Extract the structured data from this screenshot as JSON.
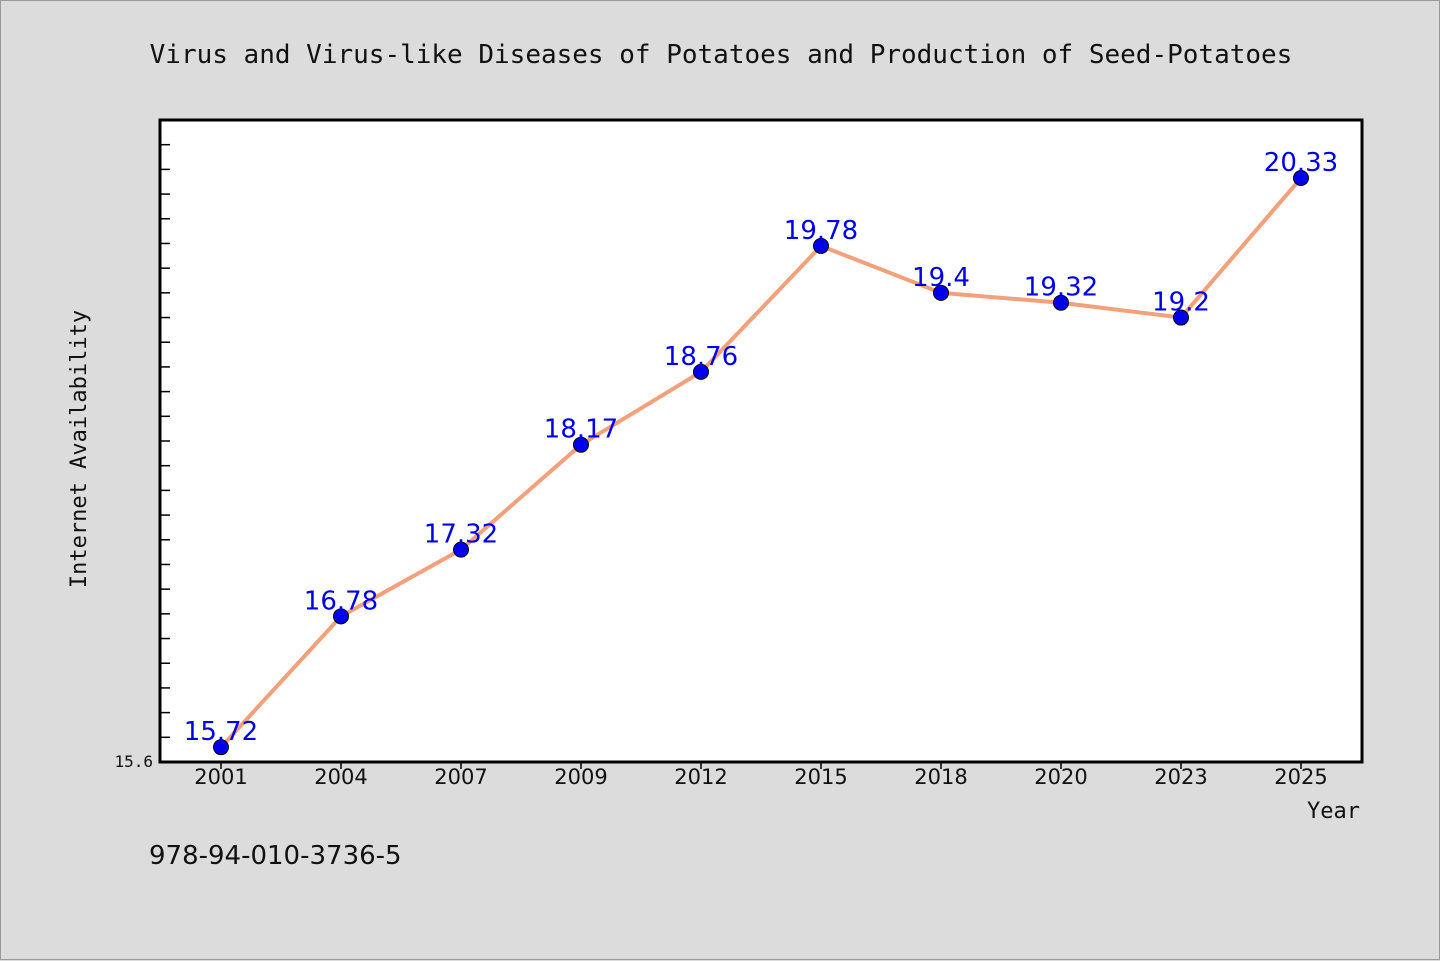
{
  "chart_data": {
    "type": "line",
    "title": "Virus and Virus-like Diseases of Potatoes and Production of Seed-Potatoes",
    "xlabel": "Year",
    "ylabel": "Internet Availability",
    "categories": [
      "2001",
      "2004",
      "2007",
      "2009",
      "2012",
      "2015",
      "2018",
      "2020",
      "2023",
      "2025"
    ],
    "series": [
      {
        "values": [
          15.72,
          16.78,
          17.32,
          18.17,
          18.76,
          19.78,
          19.4,
          19.32,
          19.2,
          20.33
        ],
        "labels": [
          "15.72",
          "16.78",
          "17.32",
          "18.17",
          "18.76",
          "19.78",
          "19.4",
          "19.32",
          "19.2",
          "20.33"
        ]
      }
    ],
    "ylim": [
      15.6,
      20.8
    ],
    "ymin_label": "15.6",
    "grid": false,
    "line_color": "#f4a07a",
    "marker_color": "#0000ee"
  },
  "footer": {
    "isbn": "978-94-010-3736-5"
  }
}
